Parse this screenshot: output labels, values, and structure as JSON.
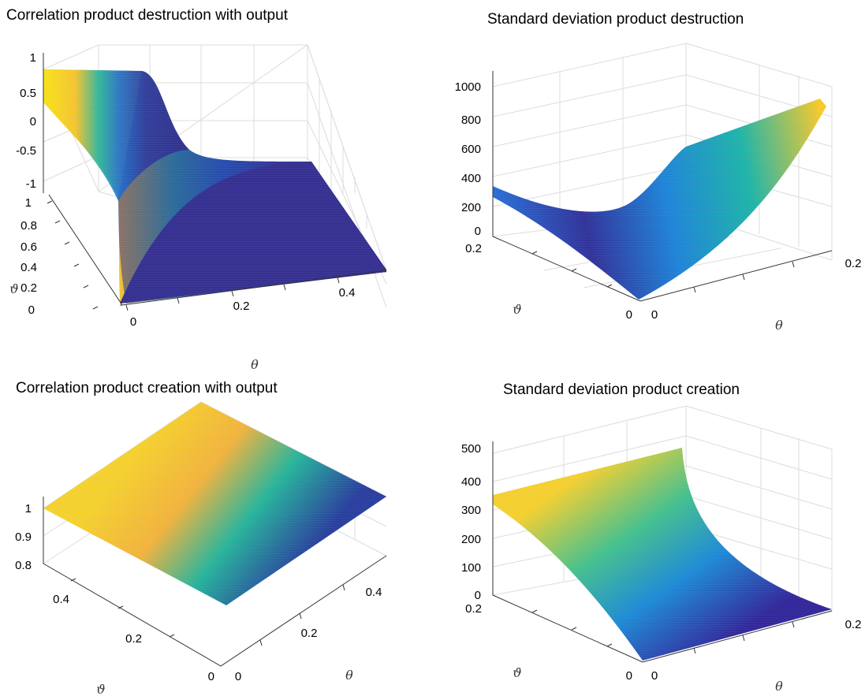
{
  "chart_data": [
    {
      "type": "surface",
      "title": "Correlation product destruction with output",
      "xlabel": "θ",
      "ylabel": "ϑ",
      "zlabel": "",
      "xlim": [
        0,
        0.5
      ],
      "ylim": [
        0,
        1
      ],
      "zlim": [
        -1,
        1
      ],
      "xticks": [
        "0",
        "0.2",
        "0.4"
      ],
      "yticks": [
        "0",
        "0.2",
        "0.4",
        "0.6",
        "0.8",
        "1"
      ],
      "zticks": [
        "1",
        "0.5",
        "0",
        "-0.5",
        "-1"
      ],
      "colormap": "parula",
      "grid": true,
      "surface_samples": {
        "note_free": true,
        "points": [
          {
            "theta": 0.0,
            "vartheta": 1.0,
            "z": 0.97
          },
          {
            "theta": 0.15,
            "vartheta": 1.0,
            "z": 0.6
          },
          {
            "theta": 0.25,
            "vartheta": 1.0,
            "z": -0.95
          },
          {
            "theta": 0.5,
            "vartheta": 1.0,
            "z": -1.0
          },
          {
            "theta": 0.0,
            "vartheta": 0.0,
            "z": 0.95
          },
          {
            "theta": 0.02,
            "vartheta": 0.0,
            "z": -1.0
          },
          {
            "theta": 0.5,
            "vartheta": 0.0,
            "z": -1.0
          }
        ]
      }
    },
    {
      "type": "surface",
      "title": "Standard deviation product destruction",
      "xlabel": "θ",
      "ylabel": "ϑ",
      "zlabel": "",
      "xlim": [
        0,
        0.25
      ],
      "ylim": [
        0,
        0.25
      ],
      "zlim": [
        0,
        1000
      ],
      "xticks": [
        "0",
        "0.2"
      ],
      "yticks": [
        "0",
        "0.2"
      ],
      "zticks": [
        "1000",
        "800",
        "600",
        "400",
        "200",
        "0"
      ],
      "colormap": "parula",
      "grid": true,
      "surface_samples": {
        "points": [
          {
            "theta": 0.0,
            "vartheta": 0.25,
            "z": 330
          },
          {
            "theta": 0.0,
            "vartheta": 0.0,
            "z": 5
          },
          {
            "theta": 0.25,
            "vartheta": 0.0,
            "z": 920
          },
          {
            "theta": 0.25,
            "vartheta": 0.25,
            "z": 520
          }
        ]
      }
    },
    {
      "type": "surface",
      "title": "Correlation product creation with output",
      "xlabel": "θ",
      "ylabel": "ϑ",
      "zlabel": "",
      "xlim": [
        0,
        0.5
      ],
      "ylim": [
        0,
        0.5
      ],
      "zlim": [
        0.8,
        1
      ],
      "xticks": [
        "0",
        "0.2",
        "0.4"
      ],
      "yticks": [
        "0",
        "0.2",
        "0.4"
      ],
      "zticks": [
        "1",
        "0.9",
        "0.8"
      ],
      "colormap": "parula",
      "grid": true,
      "surface_samples": {
        "points": [
          {
            "theta": 0.0,
            "vartheta": 0.5,
            "z": 1.0
          },
          {
            "theta": 0.5,
            "vartheta": 0.5,
            "z": 1.0
          },
          {
            "theta": 0.5,
            "vartheta": 0.0,
            "z": 1.0
          },
          {
            "theta": 0.0,
            "vartheta": 0.0,
            "z": 1.0
          }
        ]
      }
    },
    {
      "type": "surface",
      "title": "Standard deviation product creation",
      "xlabel": "θ",
      "ylabel": "ϑ",
      "zlabel": "",
      "xlim": [
        0,
        0.25
      ],
      "ylim": [
        0,
        0.25
      ],
      "zlim": [
        0,
        500
      ],
      "xticks": [
        "0",
        "0.2"
      ],
      "yticks": [
        "0",
        "0.2"
      ],
      "zticks": [
        "500",
        "400",
        "300",
        "200",
        "100",
        "0"
      ],
      "colormap": "parula",
      "grid": true,
      "surface_samples": {
        "points": [
          {
            "theta": 0.0,
            "vartheta": 0.25,
            "z": 330
          },
          {
            "theta": 0.25,
            "vartheta": 0.25,
            "z": 330
          },
          {
            "theta": 0.25,
            "vartheta": 0.0,
            "z": 2
          },
          {
            "theta": 0.0,
            "vartheta": 0.0,
            "z": 2
          }
        ]
      }
    }
  ]
}
